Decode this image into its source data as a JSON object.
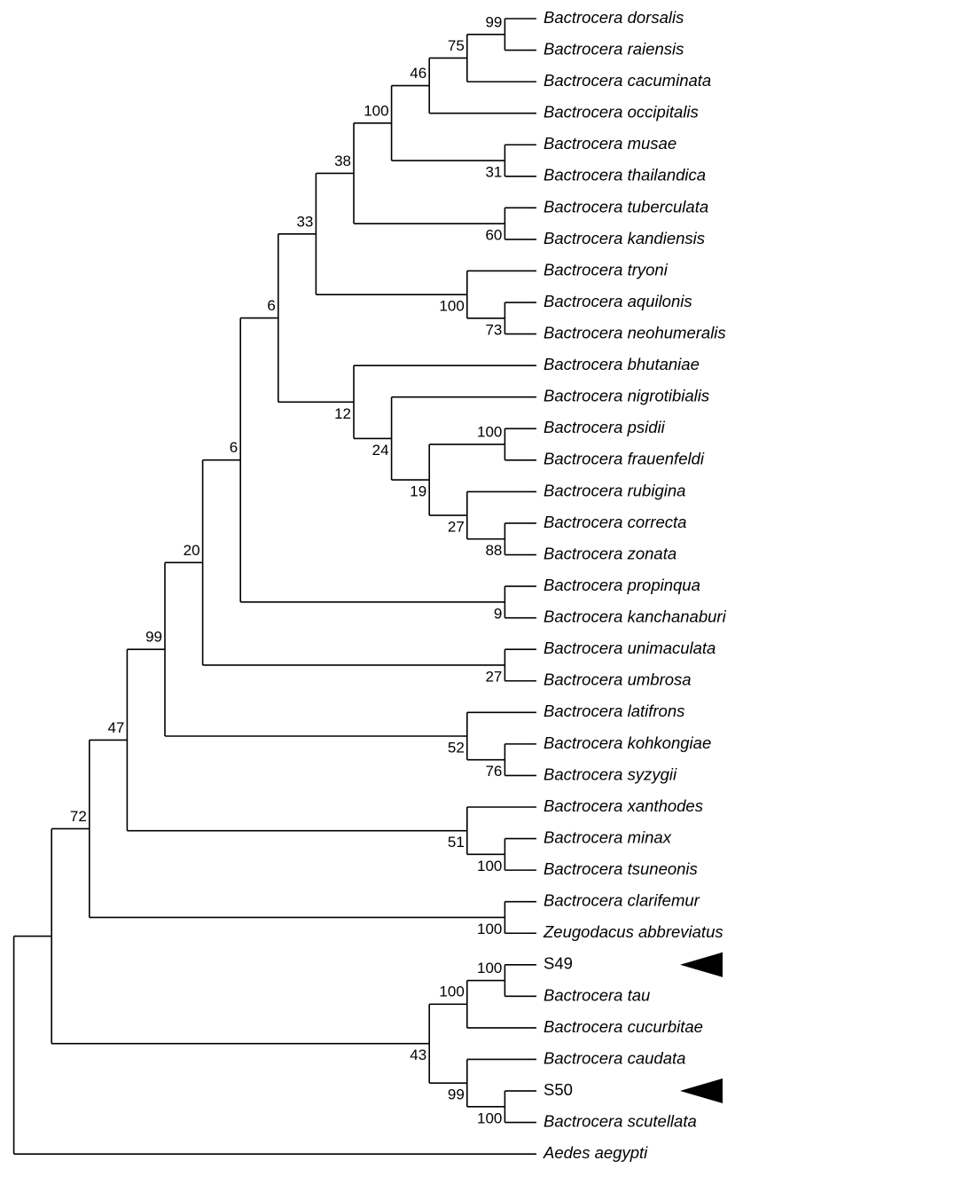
{
  "tree": {
    "children": [
      {
        "children": [
          {
            "support": "72",
            "children": [
              {
                "support": "47",
                "children": [
                  {
                    "support": "99",
                    "children": [
                      {
                        "support": "20",
                        "children": [
                          {
                            "support": "6",
                            "children": [
                              {
                                "support": "6",
                                "children": [
                                  {
                                    "support": "33",
                                    "children": [
                                      {
                                        "support": "38",
                                        "children": [
                                          {
                                            "support": "100",
                                            "children": [
                                              {
                                                "support": "46",
                                                "children": [
                                                  {
                                                    "support": "75",
                                                    "children": [
                                                      {
                                                        "support": "99",
                                                        "children": [
                                                          {
                                                            "label": "Bactrocera dorsalis"
                                                          },
                                                          {
                                                            "label": "Bactrocera raiensis"
                                                          }
                                                        ]
                                                      },
                                                      {
                                                        "label": "Bactrocera cacuminata"
                                                      }
                                                    ]
                                                  },
                                                  {
                                                    "label": "Bactrocera occipitalis"
                                                  }
                                                ]
                                              },
                                              {
                                                "support": "31",
                                                "children": [
                                                  {
                                                    "label": "Bactrocera musae"
                                                  },
                                                  {
                                                    "label": "Bactrocera thailandica"
                                                  }
                                                ]
                                              }
                                            ]
                                          },
                                          {
                                            "support": "60",
                                            "children": [
                                              {
                                                "label": "Bactrocera tuberculata"
                                              },
                                              {
                                                "label": "Bactrocera kandiensis"
                                              }
                                            ]
                                          }
                                        ]
                                      },
                                      {
                                        "support": "100",
                                        "children": [
                                          {
                                            "label": "Bactrocera tryoni"
                                          },
                                          {
                                            "support": "73",
                                            "children": [
                                              {
                                                "label": "Bactrocera aquilonis"
                                              },
                                              {
                                                "label": "Bactrocera neohumeralis"
                                              }
                                            ]
                                          }
                                        ]
                                      }
                                    ]
                                  },
                                  {
                                    "support": "12",
                                    "children": [
                                      {
                                        "label": "Bactrocera bhutaniae"
                                      },
                                      {
                                        "support": "24",
                                        "children": [
                                          {
                                            "label": "Bactrocera nigrotibialis"
                                          },
                                          {
                                            "support": "19",
                                            "children": [
                                              {
                                                "support": "100",
                                                "children": [
                                                  {
                                                    "label": "Bactrocera psidii"
                                                  },
                                                  {
                                                    "label": "Bactrocera frauenfeldi"
                                                  }
                                                ]
                                              },
                                              {
                                                "support": "27",
                                                "children": [
                                                  {
                                                    "label": "Bactrocera rubigina"
                                                  },
                                                  {
                                                    "support": "88",
                                                    "children": [
                                                      {
                                                        "label": "Bactrocera correcta"
                                                      },
                                                      {
                                                        "label": "Bactrocera zonata"
                                                      }
                                                    ]
                                                  }
                                                ]
                                              }
                                            ]
                                          }
                                        ]
                                      }
                                    ]
                                  }
                                ]
                              },
                              {
                                "support": "9",
                                "children": [
                                  {
                                    "label": "Bactrocera propinqua"
                                  },
                                  {
                                    "label": "Bactrocera kanchanaburi"
                                  }
                                ]
                              }
                            ]
                          },
                          {
                            "support": "27",
                            "children": [
                              {
                                "label": "Bactrocera unimaculata"
                              },
                              {
                                "label": "Bactrocera umbrosa"
                              }
                            ]
                          }
                        ]
                      },
                      {
                        "support": "52",
                        "children": [
                          {
                            "label": "Bactrocera latifrons"
                          },
                          {
                            "support": "76",
                            "children": [
                              {
                                "label": "Bactrocera kohkongiae"
                              },
                              {
                                "label": "Bactrocera syzygii"
                              }
                            ]
                          }
                        ]
                      }
                    ]
                  },
                  {
                    "support": "51",
                    "children": [
                      {
                        "label": "Bactrocera xanthodes"
                      },
                      {
                        "support": "100",
                        "children": [
                          {
                            "label": "Bactrocera minax"
                          },
                          {
                            "label": "Bactrocera tsuneonis"
                          }
                        ]
                      }
                    ]
                  }
                ]
              },
              {
                "support": "100",
                "children": [
                  {
                    "label": "Bactrocera clarifemur"
                  },
                  {
                    "label": "Zeugodacus abbreviatus"
                  }
                ]
              }
            ]
          },
          {
            "support": "43",
            "children": [
              {
                "support": "100",
                "children": [
                  {
                    "support": "100",
                    "children": [
                      {
                        "label": "S49",
                        "highlight": true
                      },
                      {
                        "label": "Bactrocera tau"
                      }
                    ]
                  },
                  {
                    "label": "Bactrocera cucurbitae"
                  }
                ]
              },
              {
                "support": "99",
                "children": [
                  {
                    "label": "Bactrocera caudata"
                  },
                  {
                    "support": "100",
                    "children": [
                      {
                        "label": "S50",
                        "highlight": true
                      },
                      {
                        "label": "Bactrocera scutellata"
                      }
                    ]
                  }
                ]
              }
            ]
          }
        ]
      },
      {
        "label": "Aedes aegypti"
      }
    ]
  }
}
